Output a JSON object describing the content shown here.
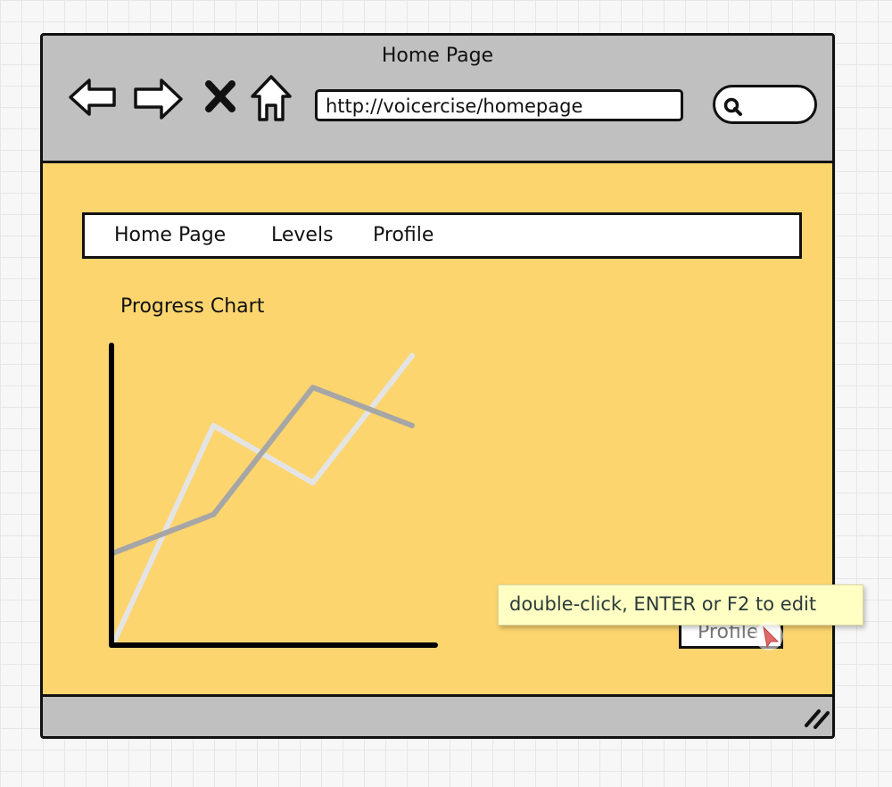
{
  "window": {
    "title": "Home Page",
    "url": "http://voicercise/homepage",
    "nav_icons": [
      "back-arrow-icon",
      "forward-arrow-icon",
      "close-icon",
      "home-icon"
    ],
    "search_icon": "search-icon"
  },
  "menu": {
    "items": [
      {
        "label": "Home Page"
      },
      {
        "label": "Levels"
      },
      {
        "label": "Profile"
      }
    ]
  },
  "content": {
    "background_color": "#fcd56f",
    "profile_button_label": "Profile"
  },
  "chart_data": {
    "type": "line",
    "title": "Progress Chart",
    "xlabel": "",
    "ylabel": "",
    "x": [
      0,
      1,
      2,
      3
    ],
    "series": [
      {
        "color": "#e4e4e4",
        "values": [
          0,
          68,
          50,
          90
        ]
      },
      {
        "color": "#a6a6a6",
        "values": [
          28,
          40,
          80,
          68
        ]
      }
    ],
    "ylim": [
      0,
      100
    ],
    "grid": false
  },
  "tooltip": {
    "text": "double-click, ENTER or F2 to edit"
  }
}
